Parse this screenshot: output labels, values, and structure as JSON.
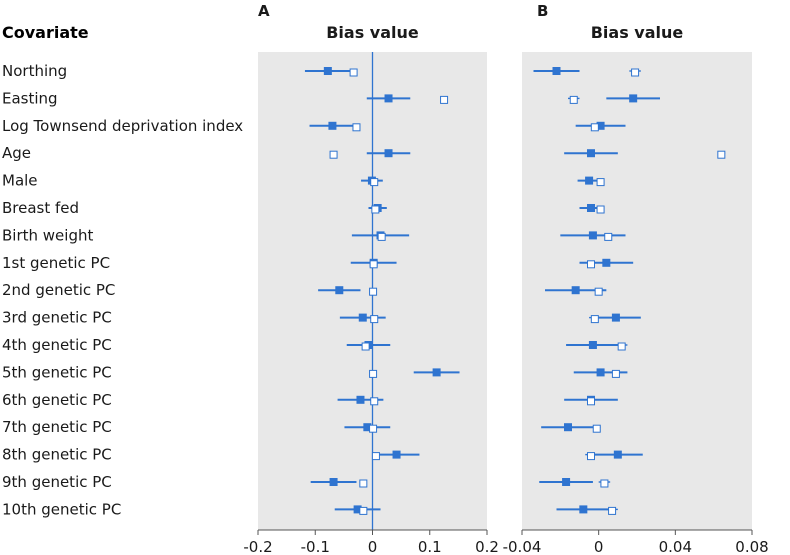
{
  "figure": {
    "covariate_header": "Covariate",
    "colors": {
      "panel_bg": "#e8e8e8",
      "accent": "#2f74d0",
      "text": "#1a1a1a"
    }
  },
  "chart_data": [
    {
      "type": "scatter",
      "panel_letter": "A",
      "title": "Bias value",
      "xlim": [
        -0.2,
        0.2
      ],
      "x_ticks": [
        "-0.2",
        "-0.1",
        "0",
        "0.1",
        "0.2"
      ],
      "x_tick_values": [
        -0.2,
        -0.1,
        0,
        0.1,
        0.2
      ],
      "reference_line_x": 0,
      "categories": [
        "Northing",
        "Easting",
        "Log Townsend deprivation index",
        "Age",
        "Male",
        "Breast fed",
        "Birth weight",
        "1st genetic PC",
        "2nd genetic PC",
        "3rd genetic PC",
        "4th genetic PC",
        "5th genetic PC",
        "6th genetic PC",
        "7th genetic PC",
        "8th genetic PC",
        "9th genetic PC",
        "10th genetic PC"
      ],
      "series": [
        {
          "marker": "filled-square",
          "values": [
            -0.078,
            0.028,
            -0.07,
            0.028,
            -0.001,
            0.009,
            0.014,
            0.002,
            -0.058,
            -0.017,
            -0.007,
            0.112,
            -0.021,
            -0.009,
            0.042,
            -0.068,
            -0.026
          ],
          "ci_low": [
            -0.118,
            -0.01,
            -0.11,
            -0.01,
            -0.02,
            -0.007,
            -0.036,
            -0.038,
            -0.095,
            -0.057,
            -0.045,
            0.072,
            -0.061,
            -0.049,
            0.002,
            -0.108,
            -0.066
          ],
          "ci_high": [
            -0.038,
            0.066,
            -0.03,
            0.066,
            0.018,
            0.025,
            0.064,
            0.042,
            -0.021,
            0.023,
            0.031,
            0.152,
            0.019,
            0.031,
            0.082,
            -0.028,
            0.014
          ]
        },
        {
          "marker": "open-square",
          "values": [
            -0.033,
            0.125,
            -0.028,
            -0.068,
            0.003,
            0.005,
            0.016,
            0.002,
            0.001,
            0.003,
            -0.012,
            0.001,
            0.003,
            0.001,
            0.006,
            -0.016,
            -0.016
          ]
        }
      ]
    },
    {
      "type": "scatter",
      "panel_letter": "B",
      "title": "Bias value",
      "xlim": [
        -0.04,
        0.08
      ],
      "x_ticks": [
        "-0.04",
        "0",
        "0.04",
        "0.08"
      ],
      "x_tick_values": [
        -0.04,
        0,
        0.04,
        0.08
      ],
      "categories": [
        "Northing",
        "Easting",
        "Log Townsend deprivation index",
        "Age",
        "Male",
        "Breast fed",
        "Birth weight",
        "1st genetic PC",
        "2nd genetic PC",
        "3rd genetic PC",
        "4th genetic PC",
        "5th genetic PC",
        "6th genetic PC",
        "7th genetic PC",
        "8th genetic PC",
        "9th genetic PC",
        "10th genetic PC"
      ],
      "series": [
        {
          "marker": "filled-square",
          "values": [
            -0.022,
            0.018,
            0.001,
            -0.004,
            -0.005,
            -0.004,
            -0.003,
            0.004,
            -0.012,
            0.009,
            -0.003,
            0.001,
            -0.004,
            -0.016,
            0.01,
            -0.017,
            -0.008
          ],
          "ci_low": [
            -0.034,
            0.004,
            -0.012,
            -0.018,
            -0.011,
            -0.01,
            -0.02,
            -0.01,
            -0.028,
            -0.004,
            -0.017,
            -0.013,
            -0.018,
            -0.03,
            -0.003,
            -0.031,
            -0.022
          ],
          "ci_high": [
            -0.01,
            0.032,
            0.014,
            0.01,
            0.001,
            0.002,
            0.014,
            0.018,
            0.004,
            0.022,
            0.011,
            0.015,
            0.01,
            -0.002,
            0.023,
            -0.003,
            0.006
          ]
        },
        {
          "marker": "open-square",
          "values": [
            0.019,
            -0.013,
            -0.002,
            0.064,
            0.001,
            0.001,
            0.005,
            -0.004,
            0.0,
            -0.002,
            0.012,
            0.009,
            -0.004,
            -0.001,
            -0.004,
            0.003,
            0.007
          ],
          "ci_low": [
            0.016,
            -0.016,
            -0.005,
            0.062,
            0.0,
            0.0,
            0.002,
            -0.007,
            -0.002,
            -0.005,
            0.009,
            0.006,
            -0.007,
            -0.003,
            -0.007,
            0.0,
            0.004
          ],
          "ci_high": [
            0.022,
            -0.01,
            0.001,
            0.066,
            0.002,
            0.002,
            0.008,
            -0.001,
            0.002,
            0.001,
            0.015,
            0.012,
            -0.001,
            0.001,
            -0.001,
            0.006,
            0.01
          ]
        }
      ]
    }
  ]
}
